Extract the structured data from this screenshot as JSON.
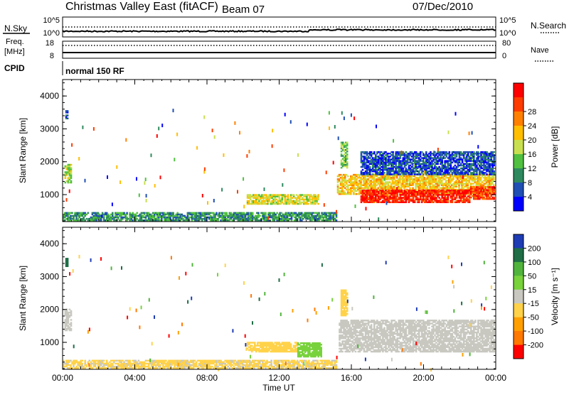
{
  "header": {
    "title": "Christmas Valley East (fitACF)",
    "beam": "Beam 07",
    "date": "07/Dec/2010"
  },
  "status_panel": {
    "nsky_label": "N.Sky",
    "nsearch_label": "N.Search",
    "noise_ticks": [
      "10^5",
      "10^0"
    ],
    "freq_label_1": "Freq.",
    "freq_label_2": "[MHz]",
    "freq_ticks": [
      "18",
      "8"
    ],
    "nave_label": "Nave",
    "nave_ticks": [
      "80",
      "0"
    ],
    "cpid_label": "CPID",
    "cpid_value": "normal 150 RF"
  },
  "colors": {
    "power": [
      "#0000ff",
      "#1f4fb4",
      "#2e8a5e",
      "#50c040",
      "#c8e050",
      "#ffbe00",
      "#ff8000",
      "#ff3c00",
      "#ff0000"
    ],
    "velocity": [
      "#1e3cb4",
      "#1f6e46",
      "#50b43c",
      "#78d23c",
      "#c8c8c0",
      "#ffd24a",
      "#ffa000",
      "#ff7800",
      "#ff0000"
    ]
  },
  "chart_data": [
    {
      "type": "heatmap",
      "title": "",
      "xlabel": "",
      "ylabel": "Slant Range [km]",
      "xlim": [
        0,
        24
      ],
      "ylim": [
        180,
        4500
      ],
      "x_tick_labels": [
        "00:00",
        "04:00",
        "08:00",
        "12:00",
        "16:00",
        "20:00",
        "00:00"
      ],
      "y_tick_labels": [
        "1000",
        "2000",
        "3000",
        "4000"
      ],
      "y_ticks": [
        1000,
        2000,
        3000,
        4000
      ],
      "colorbar": {
        "label": "Power [dB]",
        "ticks": [
          "4",
          "8",
          "12",
          "16",
          "20",
          "24",
          "28"
        ],
        "range": [
          0,
          30
        ]
      },
      "regions": [
        {
          "t0": 0.1,
          "t1": 0.45,
          "r0": 1350,
          "r1": 1900,
          "value": 14
        },
        {
          "t0": 0.15,
          "t1": 0.3,
          "r0": 3300,
          "r1": 3550,
          "value": 6
        },
        {
          "t0": 10.2,
          "t1": 14.2,
          "r0": 700,
          "r1": 1000,
          "value": 16
        },
        {
          "t0": 0.0,
          "t1": 15.2,
          "r0": 200,
          "r1": 450,
          "value": 9
        },
        {
          "t0": 15.2,
          "t1": 23.9,
          "r0": 1000,
          "r1": 1600,
          "value": 18
        },
        {
          "t0": 16.5,
          "t1": 22.5,
          "r0": 750,
          "r1": 1150,
          "value": 27
        },
        {
          "t0": 22.5,
          "t1": 23.9,
          "r0": 850,
          "r1": 1250,
          "value": 25
        },
        {
          "t0": 15.4,
          "t1": 15.8,
          "r0": 1800,
          "r1": 2600,
          "value": 12
        },
        {
          "t0": 16.5,
          "t1": 23.9,
          "r0": 1600,
          "r1": 2300,
          "value": 5
        }
      ]
    },
    {
      "type": "heatmap",
      "title": "",
      "xlabel": "Time UT",
      "ylabel": "Slant Range [km]",
      "xlim": [
        0,
        24
      ],
      "ylim": [
        180,
        4500
      ],
      "x_tick_labels": [
        "00:00",
        "04:00",
        "08:00",
        "12:00",
        "16:00",
        "20:00",
        "00:00"
      ],
      "y_tick_labels": [
        "1000",
        "2000",
        "3000",
        "4000"
      ],
      "y_ticks": [
        1000,
        2000,
        3000,
        4000
      ],
      "colorbar": {
        "label": "Velocity [m s⁻¹]",
        "ticks": [
          "200",
          "100",
          "50",
          "15",
          "-15",
          "-50",
          "-100",
          "-200"
        ],
        "range": [
          -250,
          250
        ]
      },
      "regions": [
        {
          "t0": 0.1,
          "t1": 0.45,
          "r0": 1350,
          "r1": 2000,
          "value": -5
        },
        {
          "t0": 0.15,
          "t1": 0.3,
          "r0": 3300,
          "r1": 3550,
          "value": 180
        },
        {
          "t0": 10.2,
          "t1": 13.0,
          "r0": 700,
          "r1": 1000,
          "value": -40
        },
        {
          "t0": 13.0,
          "t1": 14.3,
          "r0": 550,
          "r1": 1000,
          "value": 40
        },
        {
          "t0": 0.0,
          "t1": 15.2,
          "r0": 200,
          "r1": 450,
          "value": -30
        },
        {
          "t0": 15.3,
          "t1": 23.9,
          "r0": 700,
          "r1": 1650,
          "value": 0
        },
        {
          "t0": 15.4,
          "t1": 15.8,
          "r0": 1800,
          "r1": 2600,
          "value": -60
        }
      ]
    }
  ]
}
